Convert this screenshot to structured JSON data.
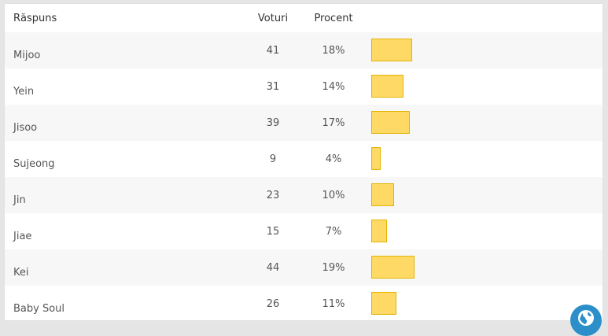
{
  "table": {
    "headers": {
      "answer": "Răspuns",
      "votes": "Voturi",
      "percent": "Procent"
    },
    "rows": [
      {
        "answer": "Mijoo",
        "votes": "41",
        "percent": "18%",
        "share": 0.18
      },
      {
        "answer": "Yein",
        "votes": "31",
        "percent": "14%",
        "share": 0.14
      },
      {
        "answer": "Jisoo",
        "votes": "39",
        "percent": "17%",
        "share": 0.17
      },
      {
        "answer": "Sujeong",
        "votes": "9",
        "percent": "4%",
        "share": 0.04
      },
      {
        "answer": "Jin",
        "votes": "23",
        "percent": "10%",
        "share": 0.1
      },
      {
        "answer": "Jiae",
        "votes": "15",
        "percent": "7%",
        "share": 0.07
      },
      {
        "answer": "Kei",
        "votes": "44",
        "percent": "19%",
        "share": 0.19
      },
      {
        "answer": "Baby Soul",
        "votes": "26",
        "percent": "11%",
        "share": 0.11
      }
    ]
  },
  "colors": {
    "bar_fill": "#ffd966",
    "bar_border": "#e2b400",
    "alt_row": "#f7f7f7",
    "help_button": "#2d8fc9"
  },
  "icons": {
    "help": "help-globe-icon"
  }
}
